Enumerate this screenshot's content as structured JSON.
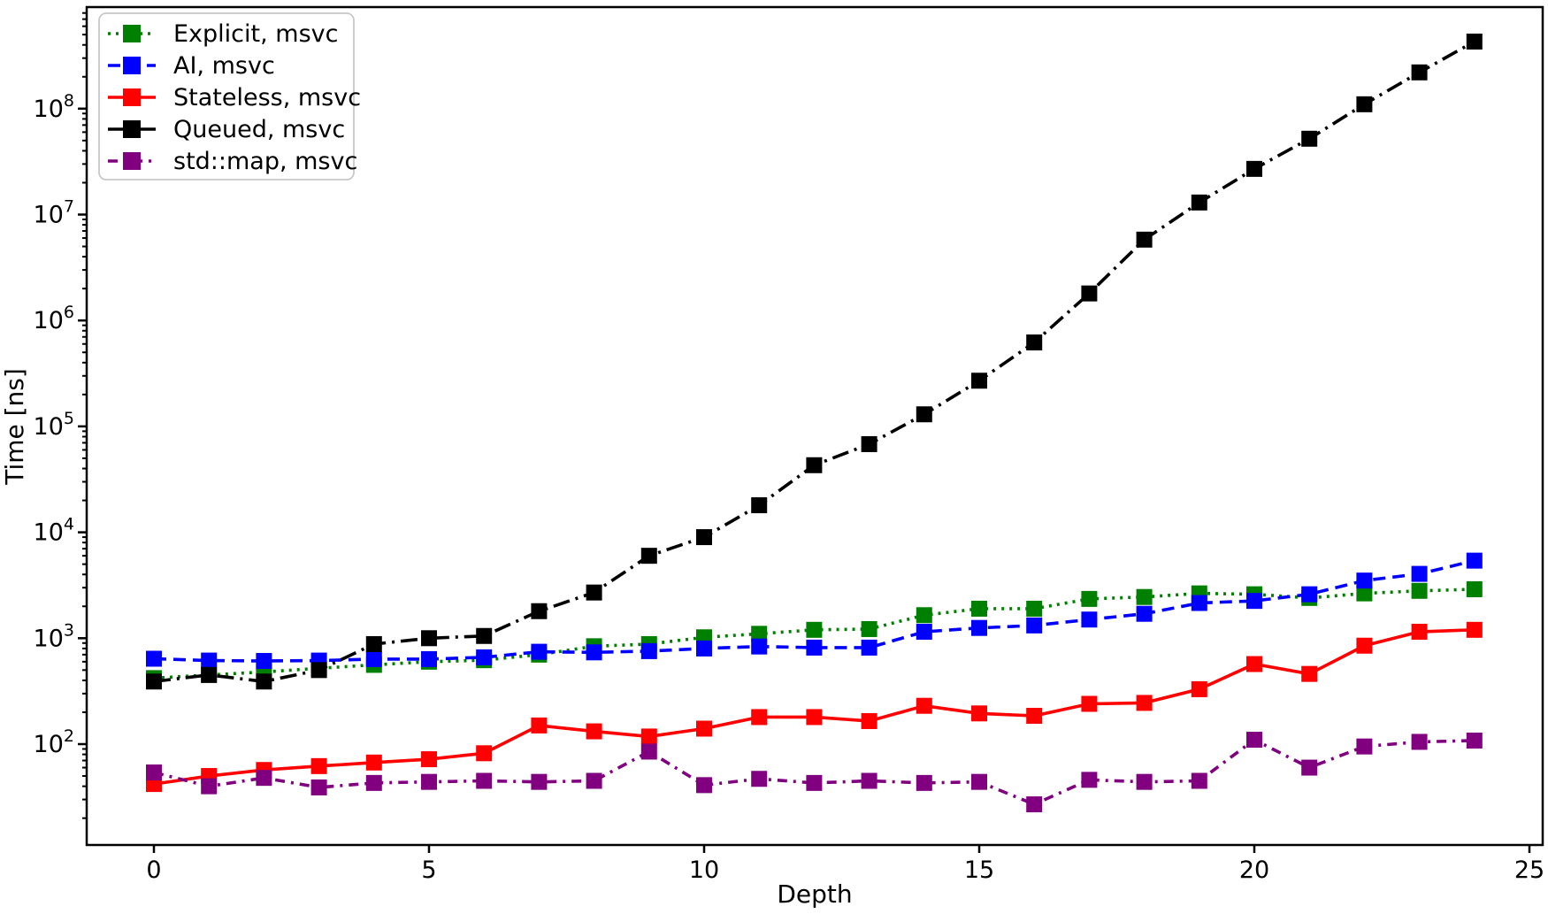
{
  "figure": {
    "background": "#ffffff",
    "legend_frame_color": "#c8c8c8"
  },
  "chart_data": {
    "type": "line",
    "title": "",
    "xlabel": "Depth",
    "ylabel": "Time [ns]",
    "yscale": "log",
    "grid": false,
    "legend_position": "upper-left",
    "x_ticks": [
      0,
      5,
      10,
      15,
      20,
      25
    ],
    "y_tick_exponents": [
      2,
      3,
      4,
      5,
      6,
      7,
      8
    ],
    "xlim": [
      -1.2,
      25.2
    ],
    "ylim": [
      11,
      1200000000
    ],
    "x": [
      0,
      1,
      2,
      3,
      4,
      5,
      6,
      7,
      8,
      9,
      10,
      11,
      12,
      13,
      14,
      15,
      16,
      17,
      18,
      19,
      20,
      21,
      22,
      23,
      24
    ],
    "series": [
      {
        "name": "Explicit, msvc",
        "color": "#008000",
        "linestyle": "dotted",
        "marker": "square",
        "values": [
          420,
          450,
          480,
          520,
          560,
          600,
          620,
          700,
          840,
          880,
          1020,
          1100,
          1200,
          1220,
          1650,
          1900,
          1900,
          2350,
          2450,
          2650,
          2600,
          2400,
          2650,
          2800,
          2900
        ]
      },
      {
        "name": "AI, msvc",
        "color": "#0000ff",
        "linestyle": "dashed",
        "marker": "square",
        "values": [
          640,
          615,
          610,
          615,
          635,
          635,
          660,
          745,
          735,
          755,
          800,
          835,
          815,
          815,
          1150,
          1250,
          1320,
          1500,
          1700,
          2150,
          2250,
          2600,
          3500,
          4050,
          5400
        ]
      },
      {
        "name": "Stateless, msvc",
        "color": "#ff0000",
        "linestyle": "solid",
        "marker": "square",
        "values": [
          42,
          50,
          57,
          62,
          67,
          72,
          82,
          150,
          132,
          118,
          140,
          180,
          180,
          165,
          230,
          195,
          185,
          240,
          245,
          330,
          570,
          460,
          850,
          1150,
          1200
        ]
      },
      {
        "name": "Queued, msvc",
        "color": "#000000",
        "linestyle": "dashdot",
        "marker": "square",
        "values": [
          390,
          450,
          390,
          500,
          880,
          1000,
          1050,
          1800,
          2700,
          6000,
          9000,
          18000,
          43000,
          68000,
          130000,
          270000,
          620000,
          1800000,
          5800000,
          13000000,
          27000000,
          52000000,
          110000000,
          220000000,
          430000000
        ]
      },
      {
        "name": "std::map, msvc",
        "color": "#800080",
        "linestyle": "dashdot-small",
        "marker": "square",
        "values": [
          54,
          40,
          48,
          39,
          43,
          44,
          45,
          44,
          45,
          85,
          41,
          47,
          43,
          45,
          43,
          44,
          27,
          46,
          44,
          45,
          110,
          60,
          95,
          105,
          108
        ]
      }
    ]
  }
}
